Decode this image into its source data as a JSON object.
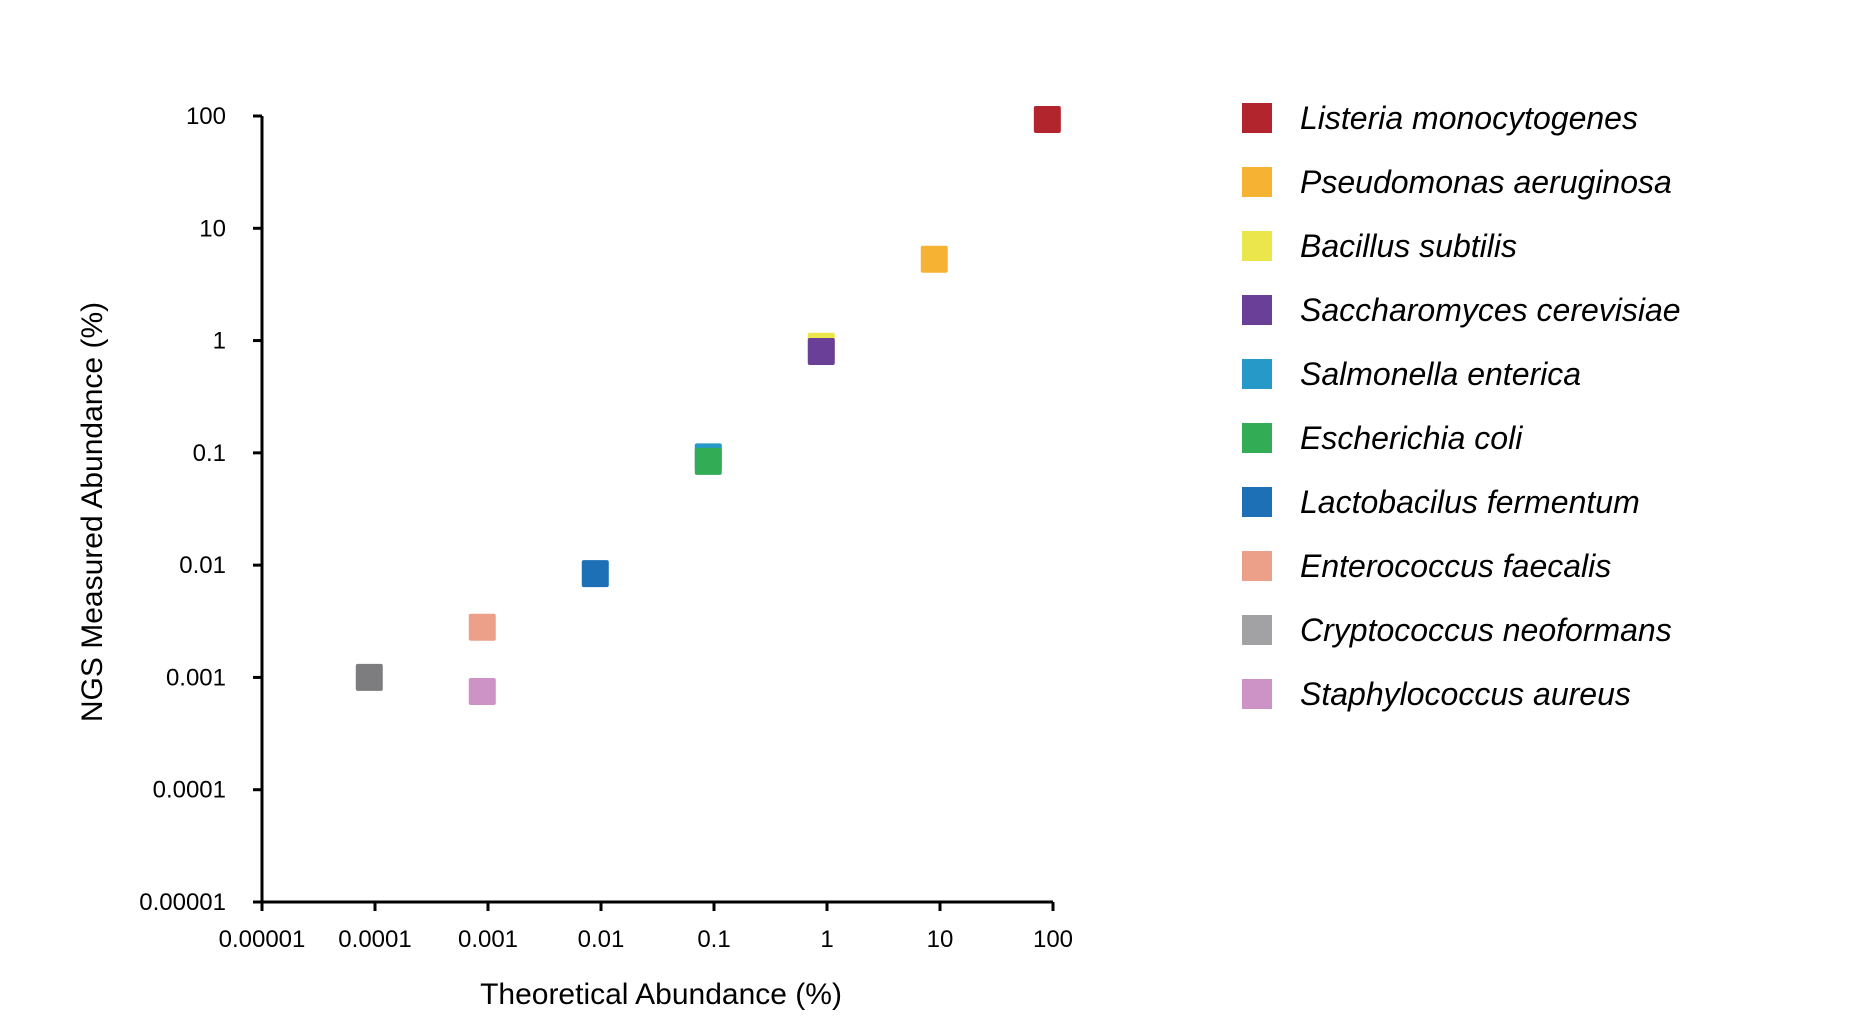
{
  "chart_data": {
    "type": "scatter",
    "xlabel": "Theoretical Abundance (%)",
    "ylabel": "NGS Measured Abundance (%)",
    "xscale": "log",
    "yscale": "log",
    "xlim": [
      1e-05,
      100
    ],
    "ylim": [
      1e-05,
      100
    ],
    "xticks": [
      "0.00001",
      "0.0001",
      "0.001",
      "0.01",
      "0.1",
      "1",
      "10",
      "100"
    ],
    "yticks": [
      "0.00001",
      "0.0001",
      "0.001",
      "0.01",
      "0.1",
      "1",
      "10",
      "100"
    ],
    "grid": false,
    "legend_position": "right",
    "series": [
      {
        "name": "Listeria monocytogenes",
        "color": "#b3252d",
        "x": [
          89.1
        ],
        "y": [
          93.0
        ]
      },
      {
        "name": "Pseudomonas aeruginosa",
        "color": "#f6b233",
        "x": [
          8.9
        ],
        "y": [
          5.3
        ]
      },
      {
        "name": "Bacillus subtilis",
        "color": "#ebe64b",
        "x": [
          0.89
        ],
        "y": [
          0.89
        ]
      },
      {
        "name": "Saccharomyces cerevisiae",
        "color": "#6a3f98",
        "x": [
          0.89
        ],
        "y": [
          0.8
        ]
      },
      {
        "name": "Salmonella enterica",
        "color": "#2799c9",
        "x": [
          0.089
        ],
        "y": [
          0.092
        ]
      },
      {
        "name": "Escherichia coli",
        "color": "#33ad55",
        "x": [
          0.089
        ],
        "y": [
          0.084
        ]
      },
      {
        "name": "Lactobacilus fermentum",
        "color": "#1d6fb6",
        "x": [
          0.0089
        ],
        "y": [
          0.0084
        ]
      },
      {
        "name": "Enterococcus faecalis",
        "color": "#eca08a",
        "x": [
          0.00089
        ],
        "y": [
          0.0028
        ]
      },
      {
        "name": "Cryptococcus neoformans",
        "color": "#7d7d80",
        "x": [
          8.9e-05
        ],
        "y": [
          0.001
        ]
      },
      {
        "name": "Staphylococcus aureus",
        "color": "#cd93c6",
        "x": [
          0.00089
        ],
        "y": [
          0.00075
        ]
      }
    ],
    "legend_colors": [
      "#b3252d",
      "#f6b233",
      "#ebe64b",
      "#6a3f98",
      "#2799c9",
      "#33ad55",
      "#1d6fb6",
      "#eca08a",
      "#a2a2a5",
      "#cd93c6"
    ]
  }
}
